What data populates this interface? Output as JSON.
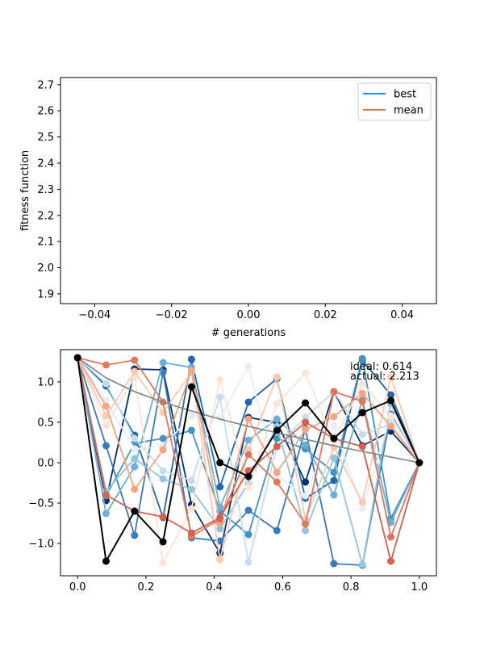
{
  "chart_data": [
    {
      "type": "line",
      "xlabel": "# generations",
      "ylabel": "fitness function",
      "xlim": [
        -0.055,
        0.055
      ],
      "ylim": [
        1.855,
        2.72
      ],
      "xticks": [
        "−0.04",
        "−0.02",
        "0.00",
        "0.02",
        "0.04"
      ],
      "yticks": [
        "1.9",
        "2.0",
        "2.1",
        "2.2",
        "2.3",
        "2.4",
        "2.5",
        "2.6",
        "2.7"
      ],
      "legend_position": "top-right",
      "series": [
        {
          "name": "best",
          "color": "#1f8ff0",
          "values": []
        },
        {
          "name": "mean",
          "color": "#e0775a",
          "values": []
        }
      ]
    },
    {
      "type": "line",
      "xlim": [
        -0.05,
        1.05
      ],
      "ylim": [
        -1.4,
        1.4
      ],
      "xticks": [
        "0.0",
        "0.2",
        "0.4",
        "0.6",
        "0.8",
        "1.0"
      ],
      "yticks": [
        "−1.0",
        "−0.5",
        "0.0",
        "0.5",
        "1.0"
      ],
      "annotations": [
        "ideal: 0.614",
        "actual: 2.213"
      ],
      "x": [
        0,
        0.0833,
        0.1667,
        0.25,
        0.3333,
        0.4167,
        0.5,
        0.5833,
        0.6667,
        0.75,
        0.8333,
        0.9167,
        1.0
      ],
      "ideal_curve": {
        "color": "#808080",
        "values": [
          1.3,
          1.05,
          0.88,
          0.75,
          0.64,
          0.54,
          0.45,
          0.37,
          0.29,
          0.21,
          0.14,
          0.07,
          0.0
        ]
      },
      "best_path": {
        "color": "#000000",
        "values": [
          1.3,
          -1.22,
          -0.6,
          -0.98,
          0.94,
          0.0,
          -0.17,
          0.4,
          0.74,
          0.3,
          0.62,
          0.77,
          0.0
        ]
      },
      "population": [
        {
          "color": "#08306b",
          "values": [
            1.3,
            -0.47,
            1.16,
            1.15,
            -0.52,
            -1.12,
            0.56,
            0.5,
            -0.24,
            0.88,
            0.21,
            0.39,
            0.0
          ]
        },
        {
          "color": "#2166ac",
          "values": [
            1.3,
            0.95,
            0.34,
            -0.68,
            1.28,
            -0.3,
            0.75,
            1.04,
            -0.44,
            -0.22,
            1.27,
            0.84,
            0.0
          ]
        },
        {
          "color": "#3a7ab8",
          "values": [
            1.3,
            0.21,
            -0.9,
            1.12,
            -0.93,
            -0.97,
            -0.59,
            -0.84,
            0.42,
            -1.25,
            -1.27,
            0.6,
            0.0
          ]
        },
        {
          "color": "#4393c3",
          "values": [
            1.3,
            -0.41,
            0.24,
            0.3,
            0.4,
            -0.6,
            -0.89,
            0.3,
            0.17,
            -0.12,
            1.29,
            -0.69,
            0.0
          ]
        },
        {
          "color": "#6baed6",
          "values": [
            1.3,
            -0.63,
            -0.05,
            1.24,
            1.18,
            -0.55,
            0.28,
            0.54,
            0.22,
            -0.4,
            0.78,
            -0.74,
            0.0
          ]
        },
        {
          "color": "#92c5de",
          "values": [
            1.3,
            -0.35,
            0.05,
            -0.2,
            -0.33,
            -0.82,
            -0.25,
            0.45,
            -0.84,
            0.06,
            -1.26,
            0.73,
            0.0
          ]
        },
        {
          "color": "#c6dbef",
          "values": [
            1.3,
            0.98,
            0.3,
            -0.1,
            -0.22,
            0.81,
            -1.23,
            0.2,
            0.56,
            0.88,
            0.35,
            0.48,
            0.0
          ]
        },
        {
          "color": "#e3eef8",
          "values": [
            1.3,
            0.77,
            0.17,
            0.2,
            0.58,
            0.55,
            1.19,
            -0.16,
            -0.41,
            0.46,
            -0.57,
            0.58,
            0.0
          ]
        },
        {
          "color": "#fbe3d6",
          "values": [
            1.3,
            0.46,
            1.06,
            -1.24,
            -0.57,
            1.03,
            -0.31,
            0.73,
            1.11,
            0.27,
            0.98,
            0.57,
            0.0
          ]
        },
        {
          "color": "#fac9b1",
          "values": [
            1.3,
            0.58,
            1.13,
            0.62,
            1.12,
            -1.2,
            0.16,
            1.06,
            -0.7,
            0.19,
            -0.49,
            1.06,
            0.0
          ]
        },
        {
          "color": "#f4a582",
          "values": [
            1.3,
            0.7,
            -0.33,
            0.16,
            1.14,
            -0.75,
            0.54,
            -0.12,
            0.41,
            0.57,
            0.86,
            0.45,
            0.0
          ]
        },
        {
          "color": "#e0775a",
          "values": [
            1.3,
            1.21,
            1.27,
            0.75,
            -0.91,
            -0.7,
            0.1,
            -0.24,
            -0.76,
            0.88,
            0.76,
            -0.92,
            0.0
          ]
        },
        {
          "color": "#d6604d",
          "values": [
            1.3,
            -0.4,
            -0.6,
            -0.67,
            -0.87,
            -0.68,
            -0.1,
            0.2,
            0.5,
            0.3,
            0.2,
            -1.22,
            0.0
          ]
        }
      ]
    }
  ]
}
